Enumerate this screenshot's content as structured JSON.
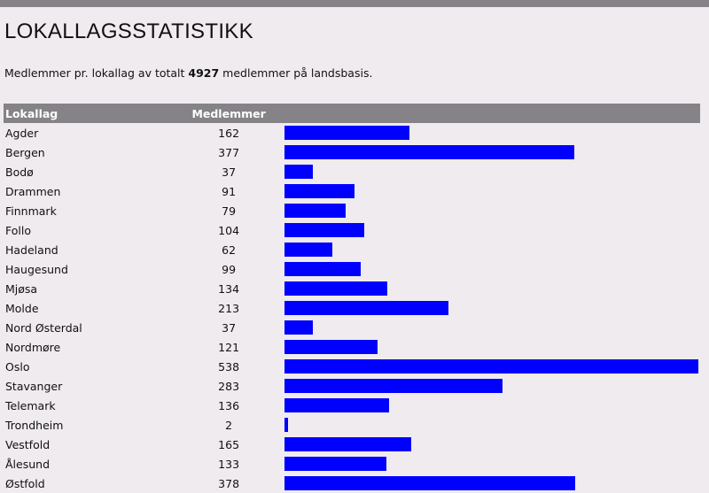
{
  "title": "LOKALLAGSSTATISTIKK",
  "intro": {
    "before": "Medlemmer pr. lokallag av totalt ",
    "total": "4927",
    "after": " medlemmer på landsbasis."
  },
  "table": {
    "headers": [
      "Lokallag",
      "Medlemmer"
    ],
    "bar_color": "#0000ff",
    "rows": [
      {
        "name": "Agder",
        "value": 162
      },
      {
        "name": "Bergen",
        "value": 377
      },
      {
        "name": "Bodø",
        "value": 37
      },
      {
        "name": "Drammen",
        "value": 91
      },
      {
        "name": "Finnmark",
        "value": 79
      },
      {
        "name": "Follo",
        "value": 104
      },
      {
        "name": "Hadeland",
        "value": 62
      },
      {
        "name": "Haugesund",
        "value": 99
      },
      {
        "name": "Mjøsa",
        "value": 134
      },
      {
        "name": "Molde",
        "value": 213
      },
      {
        "name": "Nord Østerdal",
        "value": 37
      },
      {
        "name": "Nordmøre",
        "value": 121
      },
      {
        "name": "Oslo",
        "value": 538
      },
      {
        "name": "Stavanger",
        "value": 283
      },
      {
        "name": "Telemark",
        "value": 136
      },
      {
        "name": "Trondheim",
        "value": 2
      },
      {
        "name": "Vestfold",
        "value": 165
      },
      {
        "name": "Ålesund",
        "value": 133
      },
      {
        "name": "Østfold",
        "value": 378
      }
    ]
  }
}
